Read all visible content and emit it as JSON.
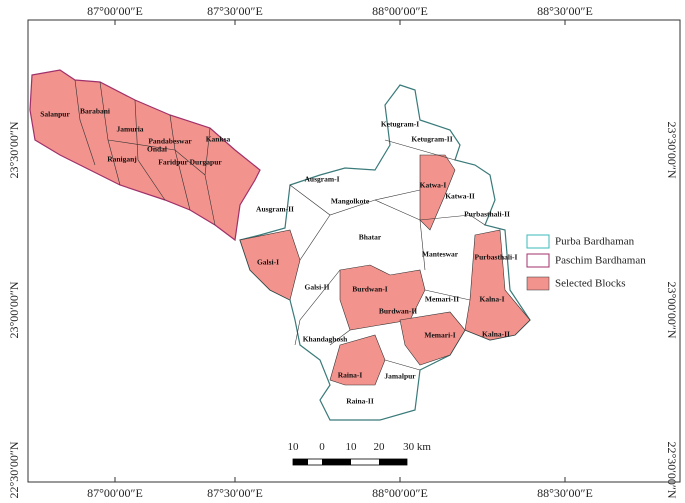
{
  "map": {
    "grid_labels": {
      "top": [
        "87°00′00″E",
        "87°30′00″E",
        "88°00′00″E",
        "88°30′00″E"
      ],
      "bottom": [
        "87°00′00″E",
        "87°30′00″E",
        "88°00′00″E",
        "88°30′00″E"
      ],
      "left": [
        "23°30′00″N",
        "23°00′00″N",
        "22°30′00″N"
      ],
      "right": [
        "23°30′00″N",
        "23°00′00″N",
        "22°30′00″N"
      ]
    },
    "blocks": [
      "Salanpur",
      "Barabani",
      "Jamuria",
      "Pandabeswar",
      "Kanksa",
      "Ondal",
      "Raniganj",
      "Faridpur Durgapur",
      "Ketugram-I",
      "Ketugram-II",
      "Katwa-I",
      "Katwa-II",
      "Ausgram-I",
      "Mangolkote",
      "Purbasthali-II",
      "Ausgram-II",
      "Bhatar",
      "Manteswar",
      "Purbasthali-I",
      "Galsi-I",
      "Galsi-II",
      "Burdwan-I",
      "Memari-II",
      "Kalna-I",
      "Burdwan-II",
      "Memari-I",
      "Kalna-II",
      "Khandaghosh",
      "Raina-I",
      "Jamalpur",
      "Raina-II"
    ],
    "legend": [
      "Purba Bardhaman",
      "Paschim Bardhaman",
      "Selected Blocks"
    ],
    "scale_bar": {
      "labels": [
        "10",
        "0",
        "10",
        "20",
        "30 km"
      ]
    }
  }
}
